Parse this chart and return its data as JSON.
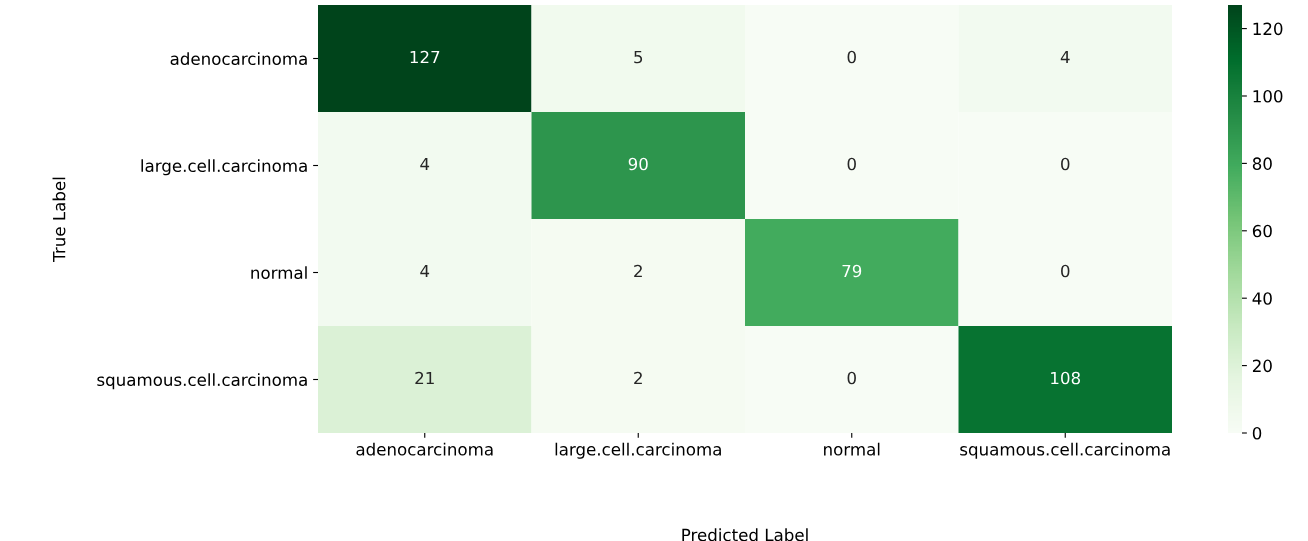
{
  "chart_data": {
    "type": "heatmap",
    "xlabel": "Predicted Label",
    "ylabel": "True Label",
    "categories": [
      "adenocarcinoma",
      "large.cell.carcinoma",
      "normal",
      "squamous.cell.carcinoma"
    ],
    "y_categories": [
      "adenocarcinoma",
      "large.cell.carcinoma",
      "normal",
      "squamous.cell.carcinoma"
    ],
    "cells": [
      [
        127,
        5,
        0,
        4
      ],
      [
        4,
        90,
        0,
        0
      ],
      [
        4,
        2,
        79,
        0
      ],
      [
        21,
        2,
        0,
        108
      ]
    ],
    "clim": [
      0,
      127
    ],
    "cticks": [
      0,
      20,
      40,
      60,
      80,
      100,
      120
    ],
    "data_labels": true
  }
}
